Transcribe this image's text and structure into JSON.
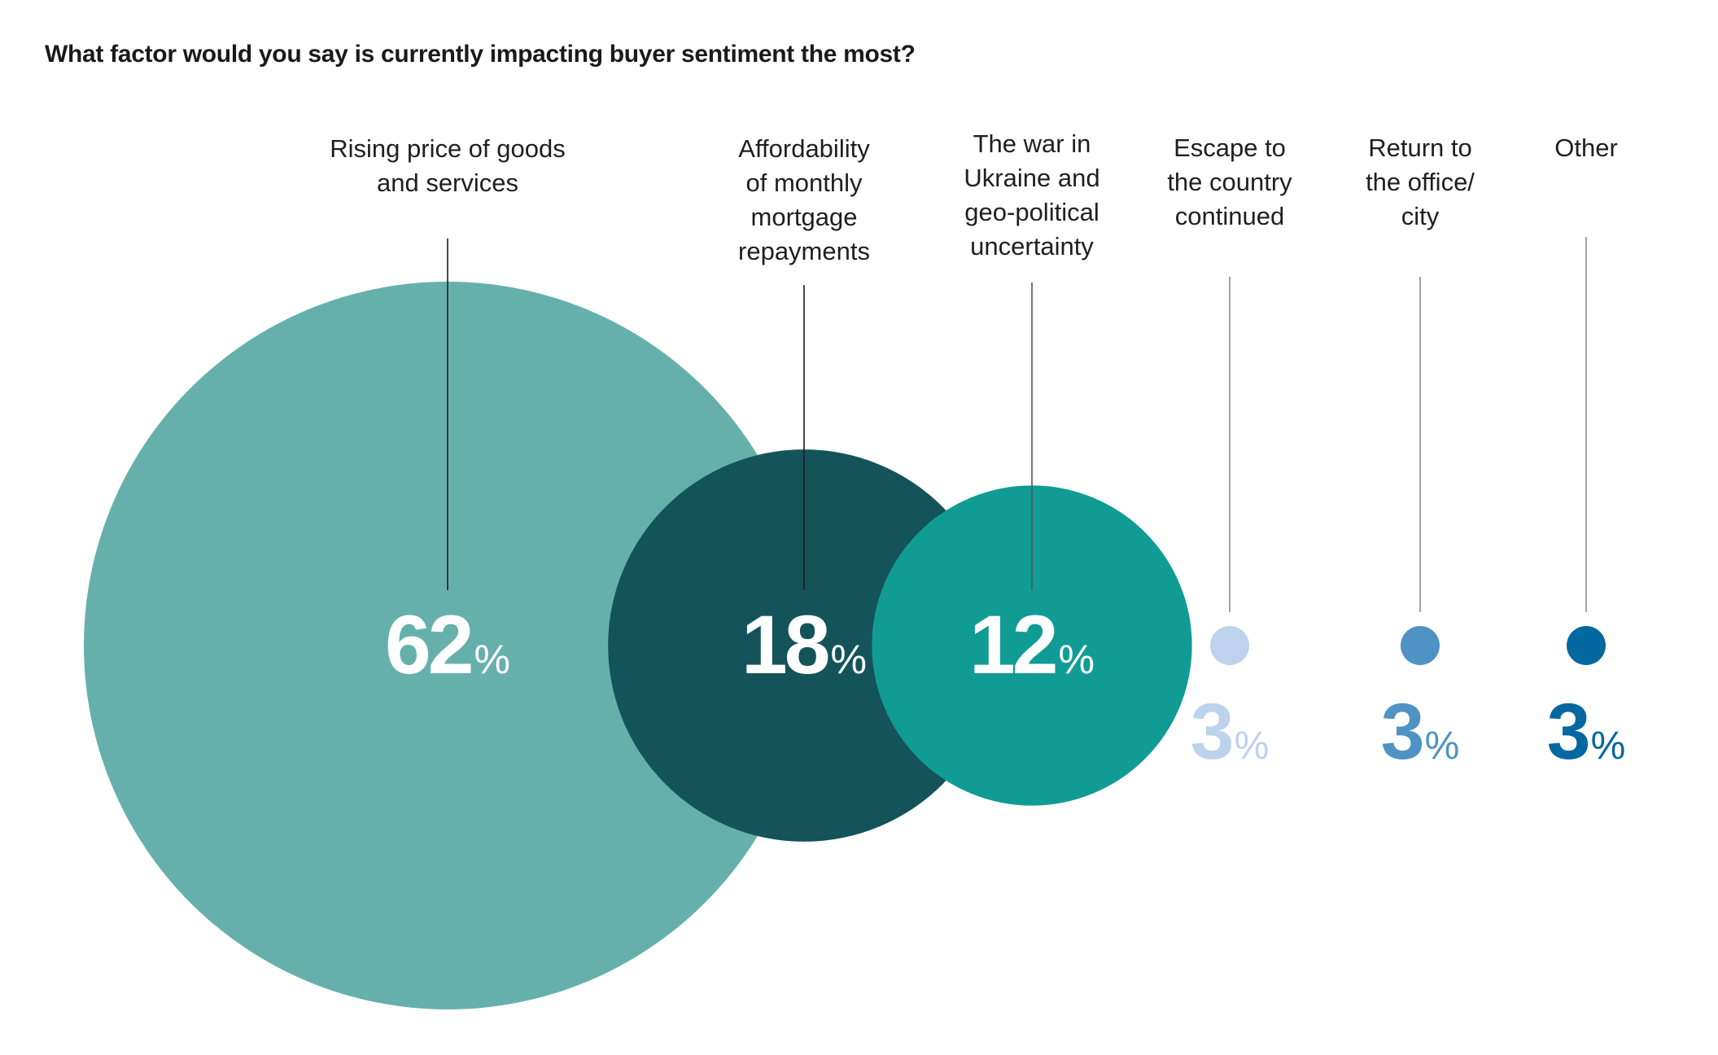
{
  "chart_data": {
    "type": "bubble",
    "title": "What factor would you say is currently impacting buyer sentiment the most?",
    "unit": "%",
    "categories": [
      "Rising price of goods and services",
      "Affordability of monthly mortgage repayments",
      "The war in Ukraine and geo-political uncertainty",
      "Escape to the country continued",
      "Return to the office/ city",
      "Other"
    ],
    "values": [
      62,
      18,
      12,
      3,
      3,
      3
    ],
    "label_lines": [
      [
        "Rising price of goods",
        "and services"
      ],
      [
        "Affordability",
        "of monthly",
        "mortgage",
        "repayments"
      ],
      [
        "The war in",
        "Ukraine and",
        "geo-political",
        "uncertainty"
      ],
      [
        "Escape to",
        "the country",
        "continued"
      ],
      [
        "Return to",
        "the office/",
        "city"
      ],
      [
        "Other"
      ]
    ],
    "value_labels": [
      "62",
      "18",
      "12",
      "3",
      "3",
      "3"
    ],
    "colors": [
      "#66b0ac",
      "#14535a",
      "#109c94",
      "#bdd2ec",
      "#4e93c4",
      "#02689f"
    ],
    "value_label_placement": [
      "inside",
      "inside",
      "inside",
      "below",
      "below",
      "below"
    ],
    "legend": "none",
    "grid": false
  }
}
